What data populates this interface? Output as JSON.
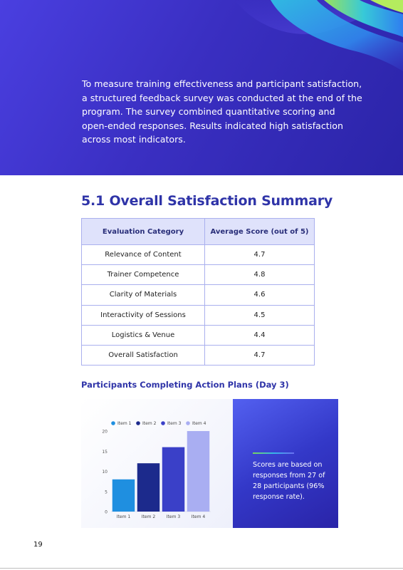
{
  "intro_text": "To measure training effectiveness and participant satisfaction, a structured feedback survey was conducted at the end of the program. The survey combined quantitative scoring and open-ended responses. Results indicated high satisfaction across most indicators.",
  "section_title": "5.1 Overall Satisfaction Summary",
  "summary_table": {
    "headers": [
      "Evaluation Category",
      "Average Score (out of 5)"
    ],
    "rows": [
      [
        "Relevance of Content",
        "4.7"
      ],
      [
        "Trainer Competence",
        "4.8"
      ],
      [
        "Clarity of Materials",
        "4.6"
      ],
      [
        "Interactivity of Sessions",
        "4.5"
      ],
      [
        "Logistics & Venue",
        "4.4"
      ],
      [
        "Overall Satisfaction",
        "4.7"
      ]
    ]
  },
  "chart_title": "Participants Completing Action Plans (Day 3)",
  "chart_data": {
    "type": "bar",
    "categories": [
      "Item 1",
      "Item 2",
      "Item 3",
      "Item 4"
    ],
    "values": [
      8,
      12,
      16,
      20
    ],
    "legend": [
      "Item 1",
      "Item 2",
      "Item 3",
      "Item 4"
    ],
    "legend_position": "top",
    "ylim": [
      0,
      20
    ],
    "yticks": [
      0,
      5,
      10,
      15,
      20
    ],
    "colors": [
      "#1f8fe0",
      "#1c2a8c",
      "#3a40c8",
      "#a9aef2"
    ],
    "grid": false
  },
  "info_note": "Scores are based on responses from 27 of 28 participants (96% response rate).",
  "page_number": "19",
  "colors": {
    "brand_blue": "#2f34a8",
    "hero_bg": "#3a2fc2",
    "table_header_bg": "#dfe2fb",
    "table_border": "#aab0ee"
  }
}
